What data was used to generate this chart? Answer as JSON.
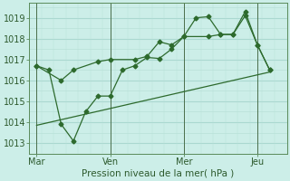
{
  "background_color": "#cceee8",
  "grid_major_color": "#aad8d0",
  "grid_minor_color": "#b8e0d8",
  "line_color": "#2d6a2d",
  "title": "Pression niveau de la mer( hPa )",
  "xtick_labels": [
    "Mar",
    "Ven",
    "Mer",
    "Jeu"
  ],
  "ylim": [
    1012.5,
    1019.7
  ],
  "yticks": [
    1013,
    1014,
    1015,
    1016,
    1017,
    1018,
    1019
  ],
  "series1_x": [
    0.0,
    0.5,
    1.0,
    1.5,
    2.0,
    2.5,
    3.0,
    3.5,
    4.0,
    4.5,
    5.0,
    5.5,
    6.0,
    6.5,
    7.0,
    7.5,
    8.0,
    8.5,
    9.0,
    9.5
  ],
  "series1_y": [
    1016.7,
    1016.5,
    1013.9,
    1013.1,
    1014.5,
    1015.25,
    1015.25,
    1016.5,
    1016.7,
    1017.1,
    1017.05,
    1017.5,
    1018.1,
    1019.0,
    1019.05,
    1018.2,
    1018.2,
    1019.3,
    1017.7,
    1016.5
  ],
  "series2_x": [
    0.0,
    1.0,
    1.5,
    2.5,
    3.0,
    4.0,
    4.5,
    5.0,
    5.5,
    6.0,
    7.0,
    7.5,
    8.0,
    8.5,
    9.0,
    9.5
  ],
  "series2_y": [
    1016.7,
    1016.0,
    1016.5,
    1016.9,
    1017.0,
    1017.0,
    1017.15,
    1017.85,
    1017.7,
    1018.1,
    1018.1,
    1018.2,
    1018.2,
    1019.1,
    1017.7,
    1016.5
  ],
  "series3_x": [
    0.0,
    9.5
  ],
  "series3_y": [
    1013.85,
    1016.4
  ],
  "xlim": [
    -0.3,
    10.2
  ],
  "vline_x": [
    0.0,
    3.0,
    6.0,
    9.0
  ],
  "xtick_x": [
    0.0,
    3.0,
    6.0,
    9.0
  ]
}
